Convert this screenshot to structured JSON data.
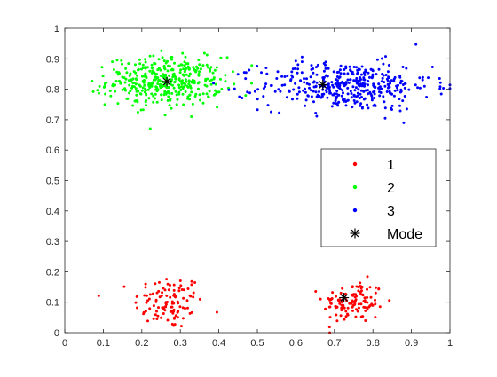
{
  "chart_data": {
    "type": "scatter",
    "title": "",
    "xlabel": "",
    "ylabel": "",
    "xlim": [
      0,
      1
    ],
    "ylim": [
      0,
      1
    ],
    "xticks": [
      "0",
      "0.1",
      "0.2",
      "0.3",
      "0.4",
      "0.5",
      "0.6",
      "0.7",
      "0.8",
      "0.9",
      "1"
    ],
    "yticks": [
      "0",
      "0.1",
      "0.2",
      "0.3",
      "0.4",
      "0.5",
      "0.6",
      "0.7",
      "0.8",
      "0.9",
      "1"
    ],
    "grid": false,
    "legend": {
      "placement": "right",
      "entries": [
        "1",
        "2",
        "3",
        "Mode"
      ]
    },
    "series": [
      {
        "name": "1",
        "color": "#ff0000",
        "clusters": [
          {
            "center": [
              0.27,
              0.1
            ],
            "spread": [
              0.045,
              0.045
            ],
            "count": 110
          },
          {
            "center": [
              0.75,
              0.1
            ],
            "spread": [
              0.04,
              0.035
            ],
            "count": 120
          }
        ]
      },
      {
        "name": "2",
        "color": "#00ff00",
        "clusters": [
          {
            "center": [
              0.26,
              0.825
            ],
            "spread": [
              0.075,
              0.04
            ],
            "count": 400
          }
        ]
      },
      {
        "name": "3",
        "color": "#0000ff",
        "clusters": [
          {
            "center": [
              0.73,
              0.81
            ],
            "spread": [
              0.11,
              0.04
            ],
            "count": 420
          }
        ]
      }
    ],
    "modes": [
      {
        "x": 0.265,
        "y": 0.825
      },
      {
        "x": 0.67,
        "y": 0.815
      },
      {
        "x": 0.725,
        "y": 0.115
      }
    ],
    "mode_color": "#000000"
  }
}
